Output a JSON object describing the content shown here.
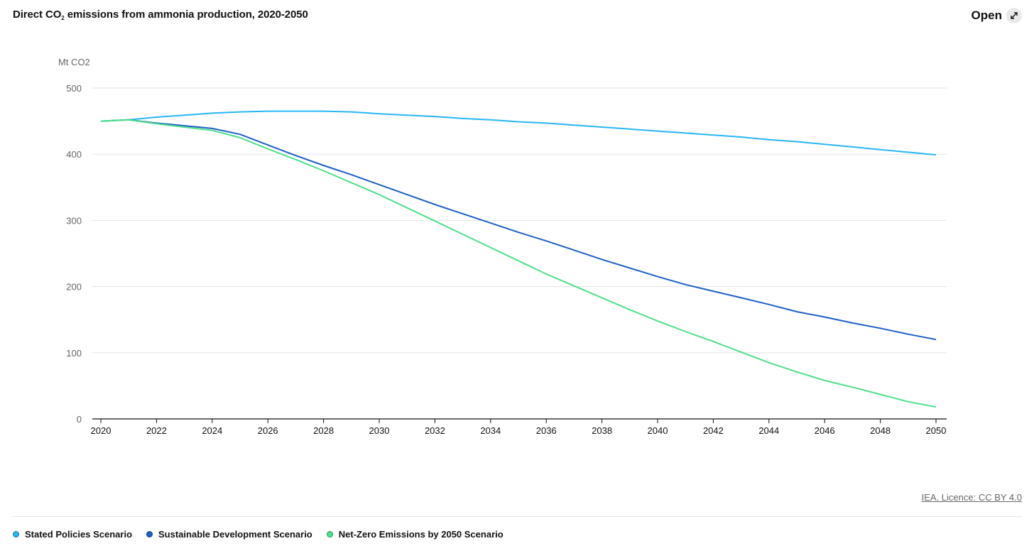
{
  "header": {
    "title_pre": "Direct CO",
    "title_sub": "2",
    "title_post": " emissions from ammonia production, 2020-2050",
    "open_label": "Open"
  },
  "footer": {
    "licence": "IEA. Licence: CC BY 4.0"
  },
  "chart_data": {
    "type": "line",
    "title": "Direct CO2 emissions from ammonia production, 2020-2050",
    "ylabel": "Mt CO2",
    "xlabel": "",
    "ylim": [
      0,
      500
    ],
    "xlim": [
      2020,
      2050
    ],
    "yticks": [
      0,
      100,
      200,
      300,
      400,
      500
    ],
    "xticks": [
      2020,
      2022,
      2024,
      2026,
      2028,
      2030,
      2032,
      2034,
      2036,
      2038,
      2040,
      2042,
      2044,
      2046,
      2048,
      2050
    ],
    "grid": true,
    "legend_position": "bottom",
    "x": [
      2020,
      2021,
      2022,
      2023,
      2024,
      2025,
      2026,
      2027,
      2028,
      2029,
      2030,
      2031,
      2032,
      2033,
      2034,
      2035,
      2036,
      2037,
      2038,
      2039,
      2040,
      2041,
      2042,
      2043,
      2044,
      2045,
      2046,
      2047,
      2048,
      2049,
      2050
    ],
    "series": [
      {
        "name": "Stated Policies Scenario",
        "color": "#29b6f6",
        "values": [
          450,
          452,
          456,
          459,
          462,
          464,
          465,
          465,
          465,
          464,
          461,
          459,
          457,
          454,
          452,
          449,
          447,
          444,
          441,
          438,
          435,
          432,
          429,
          426,
          422,
          419,
          415,
          411,
          407,
          403,
          399
        ]
      },
      {
        "name": "Sustainable Development Scenario",
        "color": "#1d5fc8",
        "values": [
          450,
          452,
          447,
          443,
          439,
          430,
          414,
          398,
          383,
          369,
          354,
          339,
          324,
          310,
          296,
          282,
          269,
          255,
          241,
          228,
          215,
          203,
          193,
          183,
          173,
          162,
          154,
          145,
          137,
          128,
          120
        ]
      },
      {
        "name": "Net-Zero Emissions by 2050 Scenario",
        "color": "#4ee08a",
        "values": [
          450,
          452,
          446,
          441,
          436,
          425,
          408,
          392,
          375,
          357,
          339,
          319,
          299,
          279,
          259,
          239,
          219,
          201,
          183,
          165,
          148,
          132,
          117,
          101,
          85,
          71,
          58,
          48,
          37,
          26,
          18
        ]
      }
    ]
  }
}
